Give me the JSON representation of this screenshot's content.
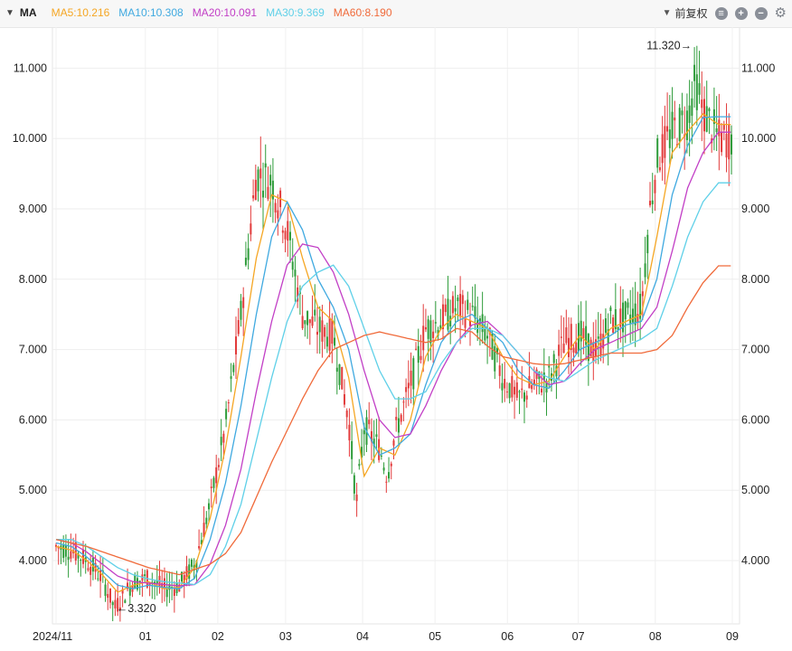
{
  "toolbar": {
    "indicator": "MA",
    "ma5": "MA5:10.216",
    "ma10": "MA10:10.308",
    "ma20": "MA20:10.091",
    "ma30": "MA30:9.369",
    "ma60": "MA60:8.190",
    "adjust_label": "前复权"
  },
  "colors": {
    "ma5": "#f5a623",
    "ma10": "#3fa9e0",
    "ma20": "#c23fc6",
    "ma30": "#5fd0e8",
    "ma60": "#f06a3a",
    "up": "#e23b3b",
    "down": "#2e9c3a"
  },
  "chart_data": {
    "type": "candlestick",
    "y_range": [
      3.3,
      11.45
    ],
    "y_ticks": [
      "4.000",
      "5.000",
      "6.000",
      "7.000",
      "8.000",
      "9.000",
      "10.000",
      "11.000"
    ],
    "x_ticks": [
      "2024/11",
      "01",
      "02",
      "03",
      "04",
      "05",
      "06",
      "07",
      "08",
      "09"
    ],
    "annotations": [
      {
        "text": "11.320→",
        "value": 11.32
      },
      {
        "text": "←3.320",
        "value": 3.32
      }
    ],
    "series": [
      {
        "name": "MA5",
        "last": 10.216,
        "points": [
          [
            0,
            4.2
          ],
          [
            10,
            4.15
          ],
          [
            20,
            4.0
          ],
          [
            30,
            3.8
          ],
          [
            40,
            3.55
          ],
          [
            50,
            3.65
          ],
          [
            60,
            3.7
          ],
          [
            70,
            3.6
          ],
          [
            80,
            3.62
          ],
          [
            90,
            3.9
          ],
          [
            100,
            4.6
          ],
          [
            110,
            5.6
          ],
          [
            120,
            6.9
          ],
          [
            130,
            8.3
          ],
          [
            140,
            9.2
          ],
          [
            150,
            9.1
          ],
          [
            160,
            8.3
          ],
          [
            170,
            7.6
          ],
          [
            180,
            7.4
          ],
          [
            190,
            6.6
          ],
          [
            200,
            5.2
          ],
          [
            210,
            5.6
          ],
          [
            220,
            5.5
          ],
          [
            230,
            6.0
          ],
          [
            240,
            6.9
          ],
          [
            250,
            7.3
          ],
          [
            260,
            7.5
          ],
          [
            270,
            7.4
          ],
          [
            280,
            7.3
          ],
          [
            290,
            6.9
          ],
          [
            300,
            6.6
          ],
          [
            310,
            6.5
          ],
          [
            320,
            6.55
          ],
          [
            330,
            6.9
          ],
          [
            340,
            7.2
          ],
          [
            350,
            7.0
          ],
          [
            360,
            7.3
          ],
          [
            370,
            7.4
          ],
          [
            380,
            7.5
          ],
          [
            390,
            8.6
          ],
          [
            400,
            9.8
          ],
          [
            410,
            10.1
          ],
          [
            420,
            10.35
          ],
          [
            430,
            10.2
          ]
        ]
      },
      {
        "name": "MA10",
        "last": 10.308,
        "points": [
          [
            0,
            4.25
          ],
          [
            10,
            4.2
          ],
          [
            20,
            4.05
          ],
          [
            30,
            3.85
          ],
          [
            40,
            3.65
          ],
          [
            50,
            3.6
          ],
          [
            60,
            3.65
          ],
          [
            70,
            3.62
          ],
          [
            80,
            3.6
          ],
          [
            90,
            3.75
          ],
          [
            100,
            4.3
          ],
          [
            110,
            5.1
          ],
          [
            120,
            6.2
          ],
          [
            130,
            7.5
          ],
          [
            140,
            8.6
          ],
          [
            150,
            9.1
          ],
          [
            160,
            8.7
          ],
          [
            170,
            8.0
          ],
          [
            180,
            7.6
          ],
          [
            190,
            7.0
          ],
          [
            200,
            5.9
          ],
          [
            210,
            5.5
          ],
          [
            220,
            5.6
          ],
          [
            230,
            5.8
          ],
          [
            240,
            6.5
          ],
          [
            250,
            7.1
          ],
          [
            260,
            7.4
          ],
          [
            270,
            7.5
          ],
          [
            280,
            7.3
          ],
          [
            290,
            7.1
          ],
          [
            300,
            6.7
          ],
          [
            310,
            6.5
          ],
          [
            320,
            6.45
          ],
          [
            330,
            6.7
          ],
          [
            340,
            7.0
          ],
          [
            350,
            7.1
          ],
          [
            360,
            7.2
          ],
          [
            370,
            7.35
          ],
          [
            380,
            7.4
          ],
          [
            390,
            8.0
          ],
          [
            400,
            9.2
          ],
          [
            410,
            9.9
          ],
          [
            420,
            10.3
          ],
          [
            430,
            10.31
          ]
        ]
      },
      {
        "name": "MA20",
        "last": 10.091,
        "points": [
          [
            0,
            4.3
          ],
          [
            10,
            4.25
          ],
          [
            20,
            4.12
          ],
          [
            30,
            3.95
          ],
          [
            40,
            3.78
          ],
          [
            50,
            3.7
          ],
          [
            60,
            3.68
          ],
          [
            70,
            3.66
          ],
          [
            80,
            3.64
          ],
          [
            90,
            3.66
          ],
          [
            100,
            3.95
          ],
          [
            110,
            4.5
          ],
          [
            120,
            5.3
          ],
          [
            130,
            6.4
          ],
          [
            140,
            7.4
          ],
          [
            150,
            8.2
          ],
          [
            160,
            8.5
          ],
          [
            170,
            8.45
          ],
          [
            180,
            8.1
          ],
          [
            190,
            7.5
          ],
          [
            200,
            6.7
          ],
          [
            210,
            6.0
          ],
          [
            220,
            5.75
          ],
          [
            230,
            5.8
          ],
          [
            240,
            6.2
          ],
          [
            250,
            6.7
          ],
          [
            260,
            7.1
          ],
          [
            270,
            7.35
          ],
          [
            280,
            7.4
          ],
          [
            290,
            7.2
          ],
          [
            300,
            6.95
          ],
          [
            310,
            6.7
          ],
          [
            320,
            6.5
          ],
          [
            330,
            6.55
          ],
          [
            340,
            6.8
          ],
          [
            350,
            7.0
          ],
          [
            360,
            7.1
          ],
          [
            370,
            7.2
          ],
          [
            380,
            7.3
          ],
          [
            390,
            7.6
          ],
          [
            400,
            8.4
          ],
          [
            410,
            9.3
          ],
          [
            420,
            9.8
          ],
          [
            430,
            10.09
          ]
        ]
      },
      {
        "name": "MA30",
        "last": 9.369,
        "points": [
          [
            0,
            4.3
          ],
          [
            10,
            4.3
          ],
          [
            20,
            4.2
          ],
          [
            30,
            4.05
          ],
          [
            40,
            3.9
          ],
          [
            50,
            3.8
          ],
          [
            60,
            3.74
          ],
          [
            70,
            3.7
          ],
          [
            80,
            3.68
          ],
          [
            90,
            3.66
          ],
          [
            100,
            3.8
          ],
          [
            110,
            4.2
          ],
          [
            120,
            4.8
          ],
          [
            130,
            5.7
          ],
          [
            140,
            6.6
          ],
          [
            150,
            7.4
          ],
          [
            160,
            7.9
          ],
          [
            170,
            8.1
          ],
          [
            180,
            8.2
          ],
          [
            190,
            7.9
          ],
          [
            200,
            7.3
          ],
          [
            210,
            6.7
          ],
          [
            220,
            6.3
          ],
          [
            230,
            6.3
          ],
          [
            240,
            6.4
          ],
          [
            250,
            6.8
          ],
          [
            260,
            7.1
          ],
          [
            270,
            7.3
          ],
          [
            280,
            7.3
          ],
          [
            290,
            7.2
          ],
          [
            300,
            6.95
          ],
          [
            310,
            6.7
          ],
          [
            320,
            6.6
          ],
          [
            330,
            6.55
          ],
          [
            340,
            6.7
          ],
          [
            350,
            6.85
          ],
          [
            360,
            6.95
          ],
          [
            370,
            7.05
          ],
          [
            380,
            7.15
          ],
          [
            390,
            7.3
          ],
          [
            400,
            7.9
          ],
          [
            410,
            8.6
          ],
          [
            420,
            9.1
          ],
          [
            430,
            9.37
          ]
        ]
      },
      {
        "name": "MA60",
        "last": 8.19,
        "points": [
          [
            0,
            4.3
          ],
          [
            20,
            4.2
          ],
          [
            40,
            4.05
          ],
          [
            60,
            3.9
          ],
          [
            80,
            3.8
          ],
          [
            100,
            3.95
          ],
          [
            110,
            4.1
          ],
          [
            120,
            4.4
          ],
          [
            130,
            4.9
          ],
          [
            140,
            5.4
          ],
          [
            150,
            5.85
          ],
          [
            160,
            6.3
          ],
          [
            170,
            6.7
          ],
          [
            180,
            7.0
          ],
          [
            190,
            7.1
          ],
          [
            200,
            7.2
          ],
          [
            210,
            7.25
          ],
          [
            220,
            7.2
          ],
          [
            230,
            7.15
          ],
          [
            240,
            7.1
          ],
          [
            250,
            7.15
          ],
          [
            260,
            7.3
          ],
          [
            270,
            7.25
          ],
          [
            280,
            7.05
          ],
          [
            290,
            6.9
          ],
          [
            300,
            6.85
          ],
          [
            310,
            6.8
          ],
          [
            320,
            6.78
          ],
          [
            330,
            6.8
          ],
          [
            340,
            6.85
          ],
          [
            350,
            6.9
          ],
          [
            360,
            6.95
          ],
          [
            370,
            6.95
          ],
          [
            380,
            6.95
          ],
          [
            390,
            7.0
          ],
          [
            400,
            7.2
          ],
          [
            410,
            7.6
          ],
          [
            420,
            7.95
          ],
          [
            430,
            8.19
          ]
        ]
      }
    ],
    "price_path": [
      [
        0,
        4.2
      ],
      [
        10,
        4.15
      ],
      [
        20,
        4.0
      ],
      [
        30,
        3.75
      ],
      [
        38,
        3.32
      ],
      [
        50,
        3.7
      ],
      [
        60,
        3.75
      ],
      [
        70,
        3.6
      ],
      [
        80,
        3.65
      ],
      [
        90,
        3.95
      ],
      [
        100,
        4.8
      ],
      [
        110,
        5.9
      ],
      [
        120,
        7.5
      ],
      [
        130,
        9.5
      ],
      [
        140,
        9.4
      ],
      [
        150,
        8.7
      ],
      [
        160,
        7.5
      ],
      [
        170,
        7.3
      ],
      [
        180,
        7.2
      ],
      [
        190,
        6.0
      ],
      [
        195,
        4.8
      ],
      [
        200,
        5.9
      ],
      [
        210,
        5.6
      ],
      [
        215,
        5.2
      ],
      [
        220,
        5.8
      ],
      [
        230,
        6.5
      ],
      [
        240,
        7.3
      ],
      [
        250,
        7.4
      ],
      [
        260,
        7.6
      ],
      [
        270,
        7.5
      ],
      [
        280,
        7.2
      ],
      [
        290,
        6.6
      ],
      [
        300,
        6.3
      ],
      [
        310,
        6.5
      ],
      [
        320,
        6.6
      ],
      [
        330,
        7.1
      ],
      [
        340,
        7.2
      ],
      [
        350,
        6.95
      ],
      [
        360,
        7.4
      ],
      [
        370,
        7.45
      ],
      [
        380,
        7.6
      ],
      [
        385,
        8.9
      ],
      [
        390,
        9.7
      ],
      [
        400,
        10.1
      ],
      [
        410,
        10.3
      ],
      [
        415,
        10.8
      ],
      [
        420,
        10.4
      ],
      [
        430,
        10.0
      ]
    ]
  }
}
